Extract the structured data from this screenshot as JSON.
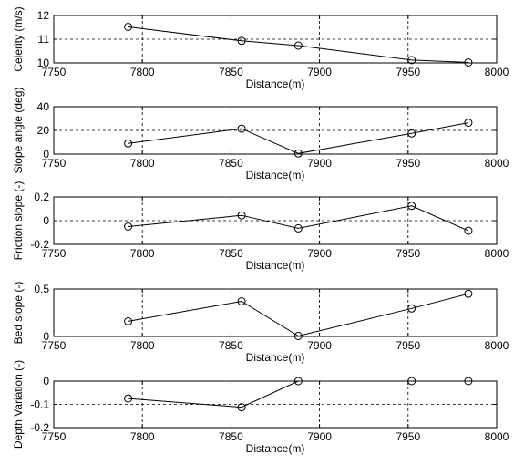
{
  "chart_data": [
    {
      "type": "line",
      "xlabel": "Distance(m)",
      "ylabel": "Celerity (m/s)",
      "xlim": [
        7750,
        8000
      ],
      "ylim": [
        10,
        12
      ],
      "xticks": [
        "7750",
        "7800",
        "7850",
        "7900",
        "7950",
        "8000"
      ],
      "yticks": [
        "10",
        "11",
        "12"
      ],
      "grid": "dashed at interior ticks",
      "marker": "open circle",
      "series": [
        {
          "x": [
            7792,
            7856,
            7888,
            7952,
            7984
          ],
          "values": [
            11.52,
            10.93,
            10.73,
            10.12,
            10.02
          ]
        }
      ]
    },
    {
      "type": "line",
      "xlabel": "Distance(m)",
      "ylabel": "Slope angle (deg)",
      "xlim": [
        7750,
        8000
      ],
      "ylim": [
        0,
        40
      ],
      "xticks": [
        "7750",
        "7800",
        "7850",
        "7900",
        "7950",
        "8000"
      ],
      "yticks": [
        "0",
        "20",
        "40"
      ],
      "grid": "dashed at interior ticks",
      "marker": "open circle",
      "series": [
        {
          "x": [
            7792,
            7856,
            7888,
            7952,
            7984
          ],
          "values": [
            9,
            21.5,
            0.5,
            17.5,
            26.5
          ]
        }
      ]
    },
    {
      "type": "line",
      "xlabel": "Distance(m)",
      "ylabel": "Friction slope (-)",
      "xlim": [
        7750,
        8000
      ],
      "ylim": [
        -0.2,
        0.2
      ],
      "xticks": [
        "7750",
        "7800",
        "7850",
        "7900",
        "7950",
        "8000"
      ],
      "yticks": [
        "-0.2",
        "0",
        "0.2"
      ],
      "grid": "dashed at interior ticks",
      "marker": "open circle",
      "series": [
        {
          "x": [
            7792,
            7856,
            7888,
            7952,
            7984
          ],
          "values": [
            -0.05,
            0.045,
            -0.065,
            0.125,
            -0.085
          ]
        }
      ]
    },
    {
      "type": "line",
      "xlabel": "Distance(m)",
      "ylabel": "Bed slope (-)",
      "xlim": [
        7750,
        8000
      ],
      "ylim": [
        0,
        0.5
      ],
      "xticks": [
        "7750",
        "7800",
        "7850",
        "7900",
        "7950",
        "8000"
      ],
      "yticks": [
        "0",
        "0.5"
      ],
      "grid": "dashed at interior ticks",
      "marker": "open circle",
      "series": [
        {
          "x": [
            7792,
            7856,
            7888,
            7952,
            7984
          ],
          "values": [
            0.16,
            0.37,
            0.005,
            0.295,
            0.45
          ]
        }
      ]
    },
    {
      "type": "line",
      "xlabel": "Distance(m)",
      "ylabel": "Depth Variation (-)",
      "xlim": [
        7750,
        8000
      ],
      "ylim": [
        -0.2,
        0
      ],
      "xticks": [
        "7750",
        "7800",
        "7850",
        "7900",
        "7950",
        "8000"
      ],
      "yticks": [
        "-0.2",
        "-0.1",
        "0"
      ],
      "grid": "dashed at interior ticks",
      "marker": "open circle",
      "series": [
        {
          "x": [
            7792,
            7856,
            7888,
            7952,
            7984
          ],
          "values": [
            -0.075,
            -0.112,
            0,
            0,
            0
          ]
        }
      ]
    }
  ]
}
